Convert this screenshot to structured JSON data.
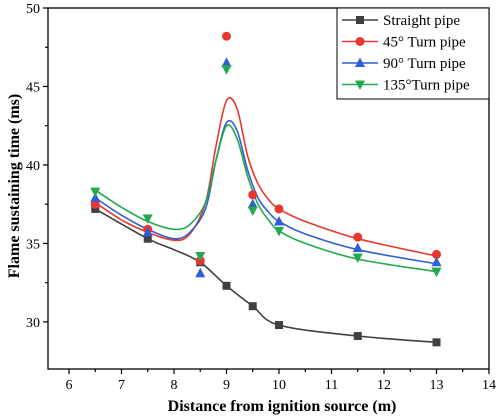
{
  "chart_data": {
    "type": "line",
    "xlabel": "Distance from ignition source (m)",
    "ylabel": "Flame sustaining time (ms)",
    "xlim": [
      5.6,
      14
    ],
    "ylim": [
      27,
      50
    ],
    "xticks": [
      6,
      7,
      8,
      9,
      10,
      11,
      12,
      13,
      14
    ],
    "yticks": [
      30,
      35,
      40,
      45,
      50
    ],
    "legend_position": "top-right",
    "grid": false,
    "series": [
      {
        "name": "Straight pipe",
        "color": "#404040",
        "marker": "square",
        "x": [
          6.5,
          7.5,
          8.5,
          9.0,
          9.5,
          10.0,
          11.5,
          13.0
        ],
        "y": [
          37.2,
          35.3,
          33.8,
          32.3,
          31.0,
          29.8,
          29.1,
          28.7
        ],
        "fit_x": [
          6.5,
          7.5,
          8.0,
          8.5,
          9.0,
          9.5,
          10.0,
          11.5,
          13.0
        ],
        "fit_y": [
          37.2,
          35.3,
          34.6,
          33.8,
          32.3,
          31.0,
          29.8,
          29.1,
          28.7
        ]
      },
      {
        "name": "45° Turn pipe",
        "color": "#e8372e",
        "marker": "circle",
        "x": [
          6.5,
          7.5,
          8.5,
          9.0,
          9.5,
          10.0,
          11.5,
          13.0
        ],
        "y": [
          37.5,
          35.9,
          33.9,
          48.2,
          38.1,
          37.2,
          35.4,
          34.3
        ],
        "fit_x": [
          6.5,
          7.0,
          7.5,
          8.0,
          8.3,
          8.6,
          8.8,
          9.0,
          9.2,
          9.4,
          9.6,
          9.8,
          10.0,
          10.5,
          11.5,
          13.0
        ],
        "fit_y": [
          37.6,
          36.5,
          35.7,
          35.2,
          35.6,
          37.6,
          41.2,
          44.1,
          43.6,
          40.6,
          38.8,
          37.8,
          37.2,
          36.4,
          35.3,
          34.2
        ]
      },
      {
        "name": "90° Turn pipe",
        "color": "#2e5fd6",
        "marker": "triangle-up",
        "x": [
          6.5,
          7.5,
          8.5,
          9.0,
          9.5,
          10.0,
          11.5,
          13.0
        ],
        "y": [
          37.9,
          35.7,
          33.1,
          46.5,
          37.5,
          36.4,
          34.7,
          33.8
        ],
        "fit_x": [
          6.5,
          7.0,
          7.5,
          8.0,
          8.3,
          8.6,
          8.8,
          9.0,
          9.2,
          9.4,
          9.6,
          9.8,
          10.0,
          10.5,
          11.5,
          13.0
        ],
        "fit_y": [
          37.9,
          36.8,
          35.9,
          35.3,
          35.7,
          37.2,
          40.3,
          42.7,
          42.2,
          39.7,
          37.9,
          37.0,
          36.4,
          35.6,
          34.6,
          33.7
        ]
      },
      {
        "name": "135°Turn pipe",
        "color": "#24a84f",
        "marker": "triangle-down",
        "x": [
          6.5,
          7.5,
          8.5,
          9.0,
          9.5,
          10.0,
          11.5,
          13.0
        ],
        "y": [
          38.3,
          36.6,
          34.2,
          46.1,
          37.1,
          35.8,
          34.1,
          33.2
        ],
        "fit_x": [
          6.5,
          7.0,
          7.5,
          8.0,
          8.3,
          8.6,
          8.8,
          9.0,
          9.2,
          9.4,
          9.6,
          9.8,
          10.0,
          10.5,
          11.5,
          13.0
        ],
        "fit_y": [
          38.4,
          37.3,
          36.4,
          35.9,
          36.2,
          37.6,
          40.3,
          42.5,
          41.7,
          39.3,
          37.5,
          36.5,
          35.8,
          35.0,
          34.0,
          33.2
        ]
      }
    ]
  }
}
